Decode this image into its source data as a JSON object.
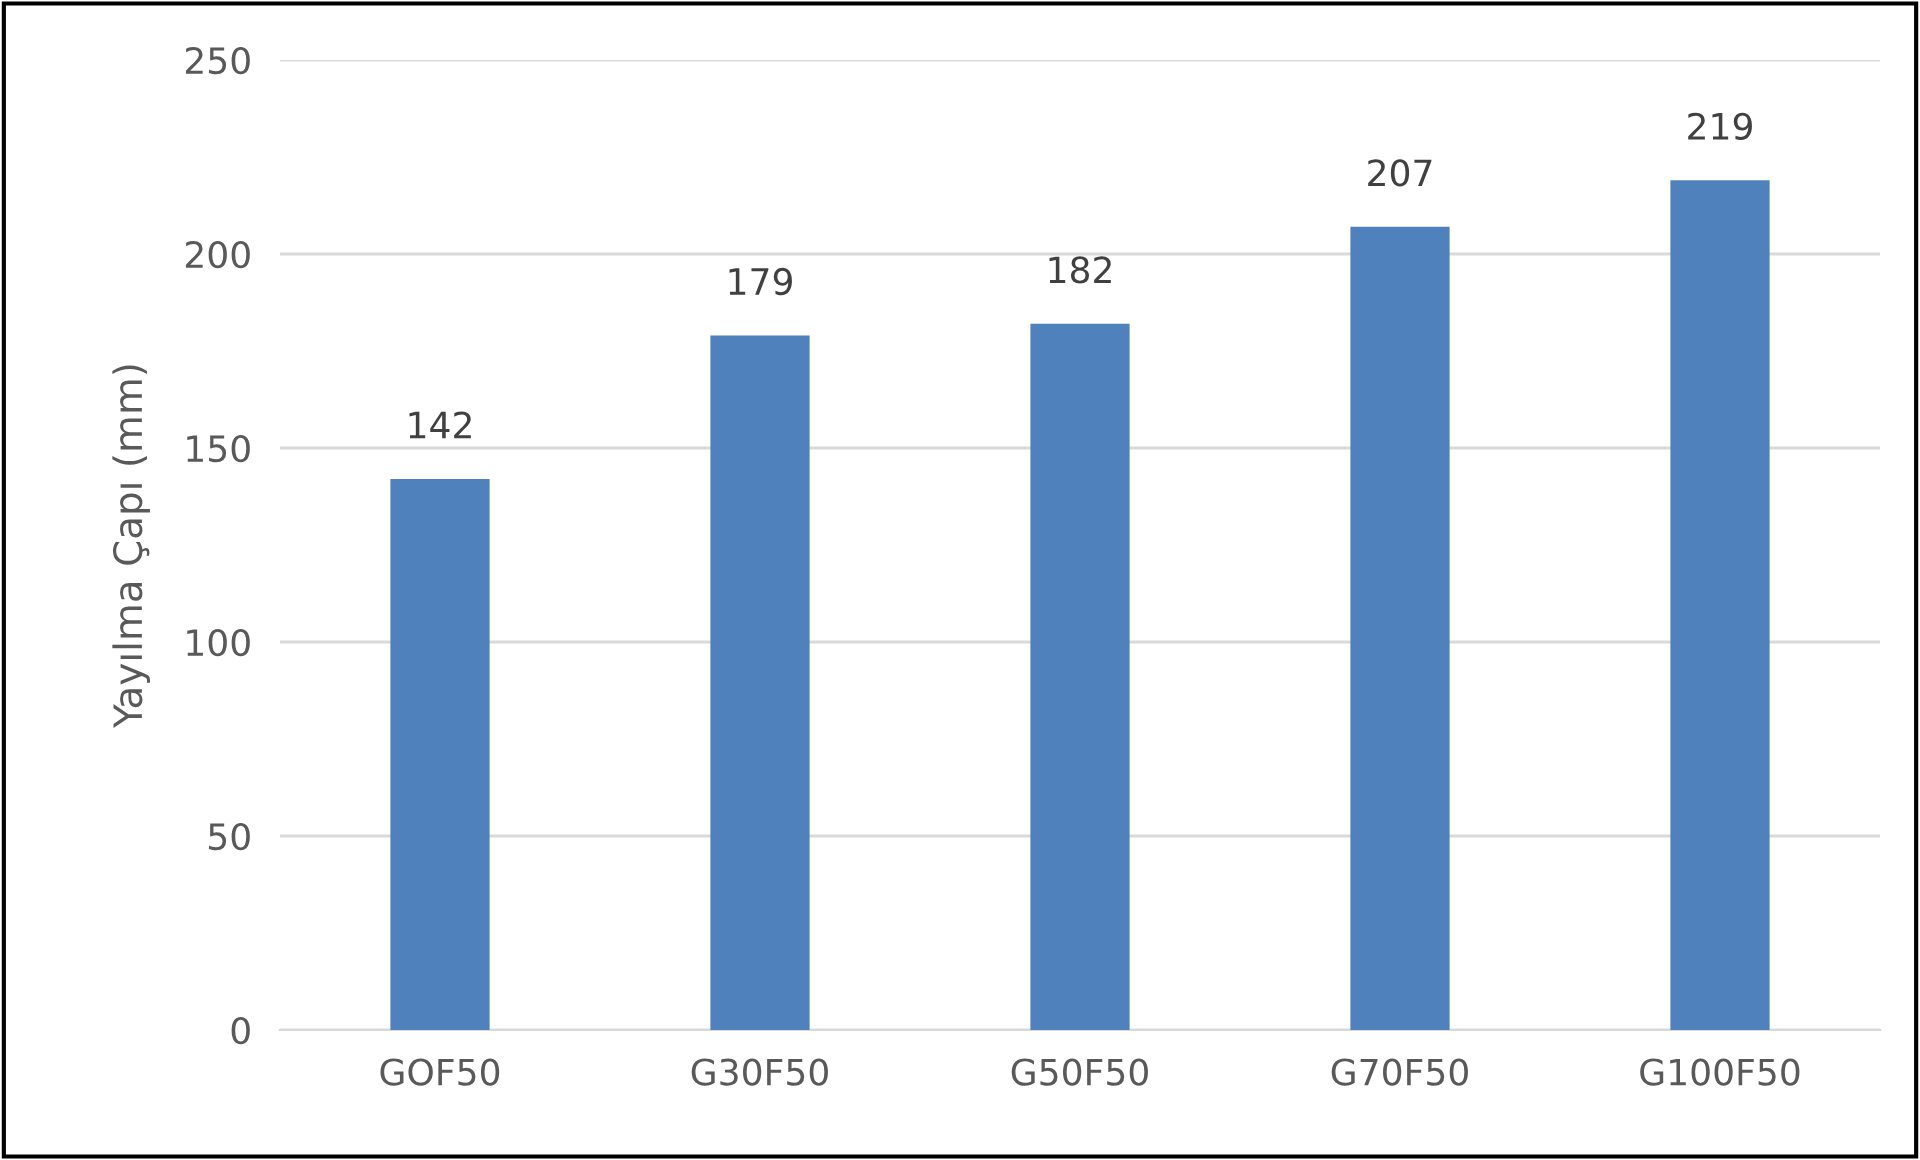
{
  "chart_data": {
    "type": "bar",
    "ylabel": "Yayılma Çapı (mm)",
    "categories": [
      "GOF50",
      "G30F50",
      "G50F50",
      "G70F50",
      "G100F50"
    ],
    "values": [
      142,
      179,
      182,
      207,
      219
    ],
    "color": "#4f81bd",
    "ylim": [
      0,
      250
    ],
    "yticks": [
      0,
      50,
      100,
      150,
      200,
      250
    ],
    "grid": "y",
    "data_labels": true
  }
}
